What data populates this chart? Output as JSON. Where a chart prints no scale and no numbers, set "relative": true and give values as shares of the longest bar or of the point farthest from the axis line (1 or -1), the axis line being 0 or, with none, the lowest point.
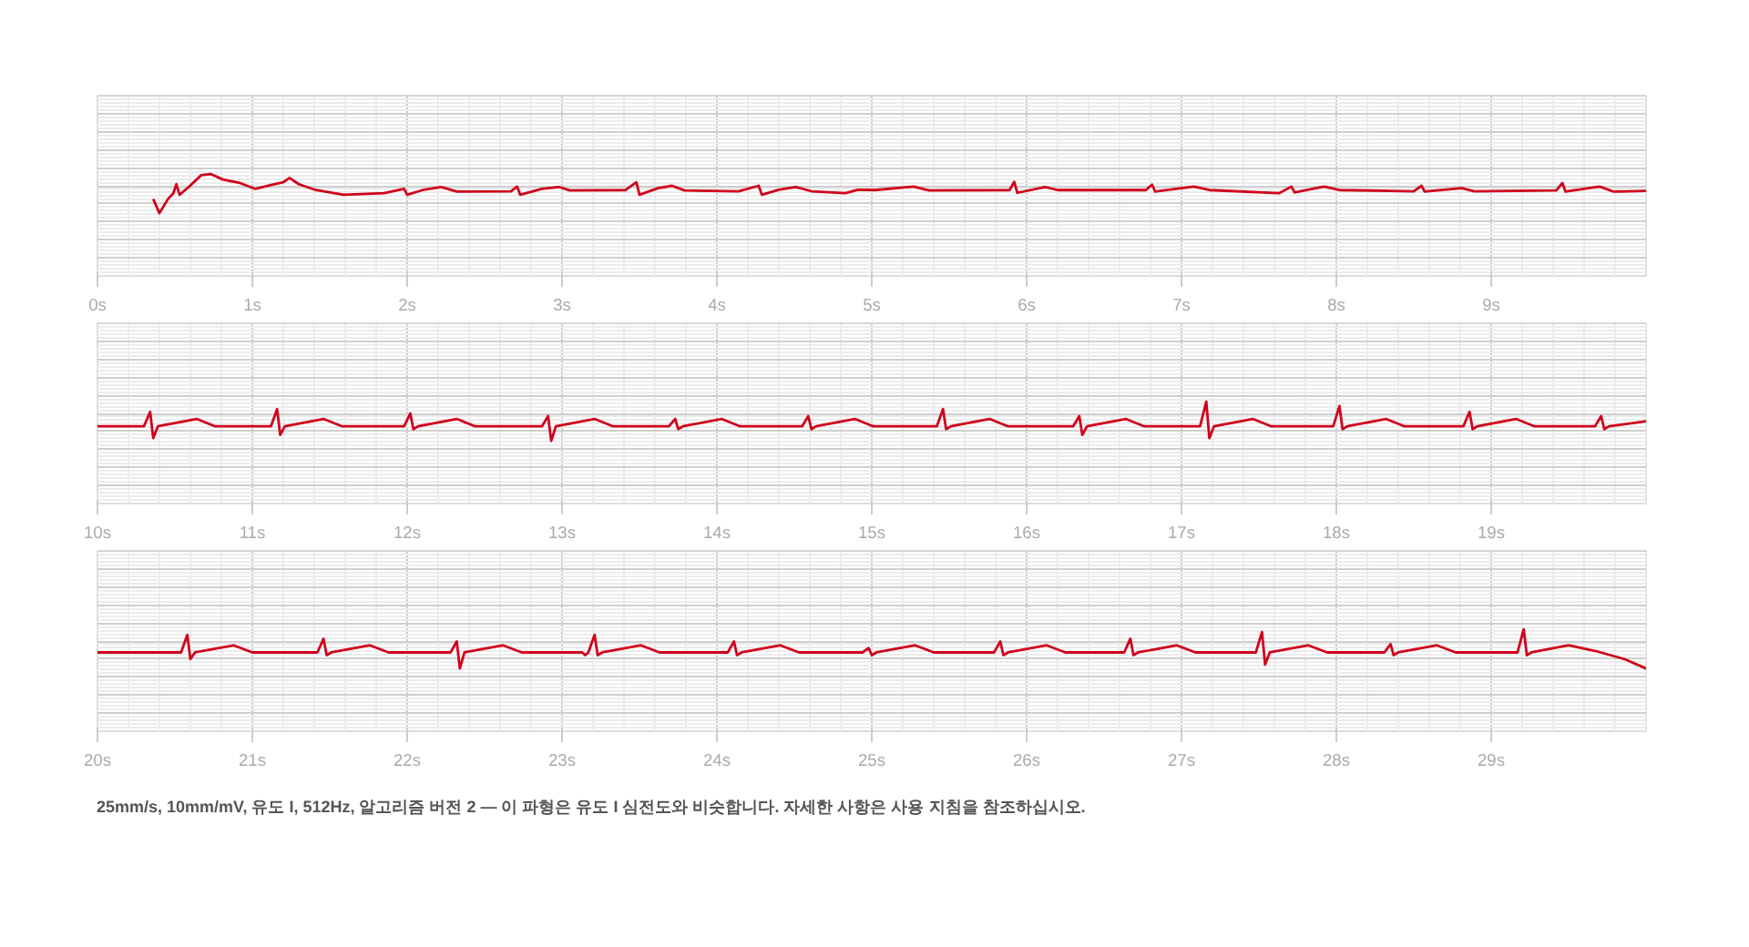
{
  "chart_data": [
    {
      "type": "line",
      "relative": true,
      "grid": true,
      "tick_labels": "x",
      "line_style": "solid",
      "xlim": [
        0,
        10
      ],
      "xticks": [
        {
          "value": 0,
          "label": "0s"
        },
        {
          "value": 1,
          "label": "1s"
        },
        {
          "value": 2,
          "label": "2s"
        },
        {
          "value": 3,
          "label": "3s"
        },
        {
          "value": 4,
          "label": "4s"
        },
        {
          "value": 5,
          "label": "5s"
        },
        {
          "value": 6,
          "label": "6s"
        },
        {
          "value": 7,
          "label": "7s"
        },
        {
          "value": 8,
          "label": "8s"
        },
        {
          "value": 9,
          "label": "9s"
        }
      ],
      "series": [
        {
          "color": "#d0021b",
          "x": [
            0.36,
            0.4,
            0.455,
            0.49,
            0.51,
            0.53,
            0.59,
            0.67,
            0.73,
            0.81,
            0.92,
            1.02,
            1.14,
            1.2,
            1.24,
            1.3,
            1.41,
            1.59,
            1.85,
            1.98,
            2.0,
            2.1,
            2.22,
            2.32,
            2.67,
            2.71,
            2.73,
            2.87,
            2.98,
            3.05,
            3.41,
            3.48,
            3.5,
            3.62,
            3.71,
            3.79,
            4.14,
            4.27,
            4.29,
            4.4,
            4.51,
            4.61,
            4.83,
            4.91,
            5.02,
            5.27,
            5.37,
            5.89,
            5.92,
            5.94,
            6.12,
            6.2,
            6.77,
            6.81,
            6.83,
            7.08,
            7.18,
            7.63,
            7.71,
            7.73,
            7.92,
            8.02,
            8.5,
            8.55,
            8.57,
            8.81,
            8.89,
            9.42,
            9.46,
            9.48,
            9.7,
            9.79,
            10.0
          ],
          "values": [
            0.36,
            0,
            0.36,
            0.51,
            0.74,
            0.47,
            0.67,
            0.97,
            1,
            0.86,
            0.77,
            0.62,
            0.74,
            0.79,
            0.9,
            0.74,
            0.59,
            0.47,
            0.51,
            0.62,
            0.47,
            0.59,
            0.67,
            0.55,
            0.56,
            0.68,
            0.47,
            0.62,
            0.67,
            0.58,
            0.59,
            0.79,
            0.47,
            0.64,
            0.7,
            0.58,
            0.56,
            0.7,
            0.47,
            0.6,
            0.67,
            0.56,
            0.51,
            0.6,
            0.59,
            0.68,
            0.58,
            0.59,
            0.8,
            0.52,
            0.67,
            0.59,
            0.59,
            0.73,
            0.55,
            0.68,
            0.59,
            0.51,
            0.68,
            0.53,
            0.68,
            0.59,
            0.56,
            0.7,
            0.55,
            0.64,
            0.56,
            0.58,
            0.77,
            0.55,
            0.68,
            0.55,
            0.57
          ]
        }
      ]
    },
    {
      "type": "line",
      "relative": true,
      "grid": true,
      "tick_labels": "x",
      "line_style": "solid",
      "xlim": [
        10,
        20
      ],
      "xticks": [
        {
          "value": 10,
          "label": "10s"
        },
        {
          "value": 11,
          "label": "11s"
        },
        {
          "value": 12,
          "label": "12s"
        },
        {
          "value": 13,
          "label": "13s"
        },
        {
          "value": 14,
          "label": "14s"
        },
        {
          "value": 15,
          "label": "15s"
        },
        {
          "value": 16,
          "label": "16s"
        },
        {
          "value": 17,
          "label": "17s"
        },
        {
          "value": 18,
          "label": "18s"
        },
        {
          "value": 19,
          "label": "19s"
        }
      ],
      "series": [
        {
          "color": "#d0021b",
          "x": [
            10.0,
            10.3,
            10.34,
            10.36,
            10.39,
            10.64,
            10.76,
            11.12,
            11.16,
            11.18,
            11.21,
            11.46,
            11.58,
            11.98,
            12.02,
            12.04,
            12.07,
            12.32,
            12.44,
            12.87,
            12.91,
            12.93,
            12.96,
            13.21,
            13.33,
            13.69,
            13.73,
            13.75,
            13.78,
            14.03,
            14.15,
            14.55,
            14.59,
            14.61,
            14.64,
            14.89,
            15.01,
            15.42,
            15.46,
            15.48,
            15.51,
            15.76,
            15.88,
            16.3,
            16.34,
            16.36,
            16.39,
            16.64,
            16.76,
            17.12,
            17.16,
            17.18,
            17.21,
            17.46,
            17.58,
            17.98,
            18.02,
            18.04,
            18.07,
            18.32,
            18.44,
            18.82,
            18.86,
            18.88,
            18.91,
            19.16,
            19.28,
            19.67,
            19.71,
            19.73,
            19.76,
            20.0
          ],
          "values": [
            0.37,
            0.37,
            0.74,
            0.07,
            0.37,
            0.56,
            0.37,
            0.37,
            0.81,
            0.15,
            0.37,
            0.56,
            0.37,
            0.37,
            0.7,
            0.3,
            0.37,
            0.56,
            0.37,
            0.37,
            0.63,
            0,
            0.37,
            0.56,
            0.37,
            0.37,
            0.56,
            0.3,
            0.37,
            0.56,
            0.37,
            0.37,
            0.63,
            0.3,
            0.37,
            0.56,
            0.37,
            0.37,
            0.81,
            0.3,
            0.37,
            0.56,
            0.37,
            0.37,
            0.63,
            0.15,
            0.37,
            0.56,
            0.37,
            0.37,
            1,
            0.07,
            0.37,
            0.56,
            0.37,
            0.37,
            0.89,
            0.3,
            0.37,
            0.56,
            0.37,
            0.37,
            0.74,
            0.3,
            0.37,
            0.56,
            0.37,
            0.37,
            0.63,
            0.3,
            0.37,
            0.5
          ]
        }
      ]
    },
    {
      "type": "line",
      "relative": true,
      "grid": true,
      "tick_labels": "x",
      "line_style": "solid",
      "xlim": [
        20,
        30
      ],
      "xticks": [
        {
          "value": 20,
          "label": "20s"
        },
        {
          "value": 21,
          "label": "21s"
        },
        {
          "value": 22,
          "label": "22s"
        },
        {
          "value": 23,
          "label": "23s"
        },
        {
          "value": 24,
          "label": "24s"
        },
        {
          "value": 25,
          "label": "25s"
        },
        {
          "value": 26,
          "label": "26s"
        },
        {
          "value": 27,
          "label": "27s"
        },
        {
          "value": 28,
          "label": "28s"
        },
        {
          "value": 29,
          "label": "29s"
        }
      ],
      "annotations": [
        "25mm/s, 10mm/mV, 유도 I, 512Hz, 알고리즘 버전 2 — 이 파형은 유도 I 심전도와 비슷합니다. 자세한 사항은 사용 지침을 참조하십시오."
      ],
      "series": [
        {
          "color": "#d0021b",
          "x": [
            20.0,
            20.54,
            20.58,
            20.6,
            20.63,
            20.88,
            21.0,
            21.42,
            21.46,
            21.48,
            21.51,
            21.76,
            21.88,
            22.28,
            22.32,
            22.34,
            22.37,
            22.62,
            22.74,
            23.13,
            23.15,
            23.17,
            23.21,
            23.23,
            23.26,
            23.51,
            23.63,
            24.07,
            24.11,
            24.13,
            24.16,
            24.41,
            24.53,
            24.94,
            24.98,
            25.0,
            25.03,
            25.28,
            25.4,
            25.79,
            25.83,
            25.85,
            25.88,
            26.13,
            26.25,
            26.63,
            26.67,
            26.69,
            26.72,
            26.97,
            27.09,
            27.48,
            27.52,
            27.54,
            27.57,
            27.82,
            27.94,
            28.31,
            28.35,
            28.37,
            28.4,
            28.65,
            28.77,
            29.17,
            29.21,
            29.23,
            29.26,
            29.5,
            29.67,
            29.86,
            30.0
          ],
          "values": [
            0.41,
            0.41,
            0.86,
            0.24,
            0.41,
            0.59,
            0.41,
            0.41,
            0.76,
            0.34,
            0.41,
            0.59,
            0.41,
            0.41,
            0.69,
            0,
            0.41,
            0.59,
            0.41,
            0.41,
            0.34,
            0.41,
            0.86,
            0.34,
            0.41,
            0.59,
            0.41,
            0.41,
            0.69,
            0.34,
            0.41,
            0.59,
            0.41,
            0.41,
            0.52,
            0.34,
            0.41,
            0.59,
            0.41,
            0.41,
            0.69,
            0.34,
            0.41,
            0.59,
            0.41,
            0.41,
            0.76,
            0.34,
            0.41,
            0.59,
            0.41,
            0.41,
            0.93,
            0.1,
            0.41,
            0.59,
            0.41,
            0.41,
            0.62,
            0.34,
            0.41,
            0.59,
            0.41,
            0.41,
            1,
            0.34,
            0.41,
            0.59,
            0.45,
            0.24,
            0
          ]
        }
      ]
    }
  ]
}
